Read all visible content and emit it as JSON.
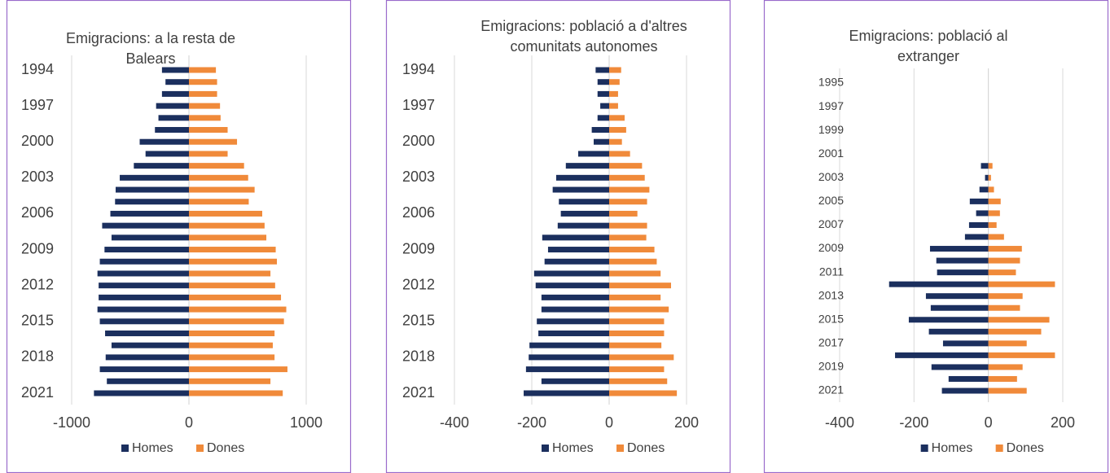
{
  "chart_data": [
    {
      "type": "bar",
      "orientation": "horizontal",
      "title": "Emigracions: a la resta de Balears",
      "categories": [
        "1994",
        null,
        null,
        "1997",
        null,
        null,
        "2000",
        null,
        null,
        "2003",
        null,
        null,
        "2006",
        null,
        null,
        "2009",
        null,
        null,
        "2012",
        null,
        null,
        "2015",
        null,
        null,
        "2018",
        null,
        null,
        "2021"
      ],
      "series": [
        {
          "name": "Homes",
          "color": "#1b2f5e",
          "values": [
            -230,
            -200,
            -230,
            -280,
            -260,
            -290,
            -420,
            -370,
            -470,
            -590,
            -625,
            -630,
            -670,
            -740,
            -660,
            -720,
            -760,
            -780,
            -770,
            -770,
            -780,
            -760,
            -715,
            -660,
            -710,
            -760,
            -700,
            -810
          ]
        },
        {
          "name": "Dones",
          "color": "#f08a3a",
          "values": [
            230,
            240,
            240,
            265,
            270,
            330,
            410,
            330,
            470,
            505,
            560,
            510,
            625,
            645,
            660,
            740,
            750,
            695,
            735,
            785,
            830,
            810,
            730,
            715,
            730,
            840,
            695,
            800
          ]
        }
      ],
      "xlim": [
        -1000,
        1000
      ],
      "xticks": [
        -1000,
        0,
        1000
      ],
      "grid": true
    },
    {
      "type": "bar",
      "orientation": "horizontal",
      "title": "Emigracions: població a d'altres comunitats autonomes",
      "categories": [
        "1994",
        null,
        null,
        "1997",
        null,
        null,
        "2000",
        null,
        null,
        "2003",
        null,
        null,
        "2006",
        null,
        null,
        "2009",
        null,
        null,
        "2012",
        null,
        null,
        "2015",
        null,
        null,
        "2018",
        null,
        null,
        "2021"
      ],
      "series": [
        {
          "name": "Homes",
          "color": "#1b2f5e",
          "values": [
            -35,
            -30,
            -30,
            -23,
            -30,
            -45,
            -40,
            -80,
            -112,
            -137,
            -146,
            -130,
            -125,
            -133,
            -173,
            -158,
            -167,
            -194,
            -190,
            -175,
            -175,
            -187,
            -183,
            -206,
            -208,
            -215,
            -175,
            -221
          ]
        },
        {
          "name": "Dones",
          "color": "#f08a3a",
          "values": [
            31,
            27,
            23,
            23,
            40,
            44,
            33,
            54,
            85,
            92,
            104,
            98,
            73,
            98,
            96,
            117,
            123,
            133,
            160,
            133,
            154,
            142,
            142,
            135,
            167,
            142,
            150,
            175
          ]
        }
      ],
      "xlim": [
        -400,
        200
      ],
      "xticks": [
        -400,
        -200,
        0,
        200
      ],
      "grid": true
    },
    {
      "type": "bar",
      "orientation": "horizontal",
      "title": "Emigracions: població al extranger",
      "categories": [
        "1995",
        null,
        "1997",
        null,
        "1999",
        null,
        "2001",
        null,
        "2003",
        null,
        "2005",
        null,
        "2007",
        null,
        "2009",
        null,
        "2011",
        null,
        "2013",
        null,
        "2015",
        null,
        "2017",
        null,
        "2019",
        null,
        "2021"
      ],
      "series": [
        {
          "name": "Homes",
          "color": "#1b2f5e",
          "values": [
            0,
            0,
            0,
            0,
            0,
            0,
            0,
            -20,
            -9,
            -24,
            -50,
            -33,
            -52,
            -63,
            -157,
            -140,
            -138,
            -267,
            -168,
            -155,
            -214,
            -160,
            -122,
            -251,
            -153,
            -107,
            -125
          ]
        },
        {
          "name": "Dones",
          "color": "#f08a3a",
          "values": [
            0,
            0,
            0,
            0,
            0,
            0,
            0,
            11,
            7,
            15,
            33,
            31,
            22,
            42,
            90,
            85,
            74,
            179,
            92,
            85,
            164,
            142,
            103,
            179,
            92,
            77,
            103
          ]
        }
      ],
      "xlim": [
        -400,
        200
      ],
      "xticks": [
        -400,
        -200,
        0,
        200
      ],
      "grid": true
    }
  ]
}
